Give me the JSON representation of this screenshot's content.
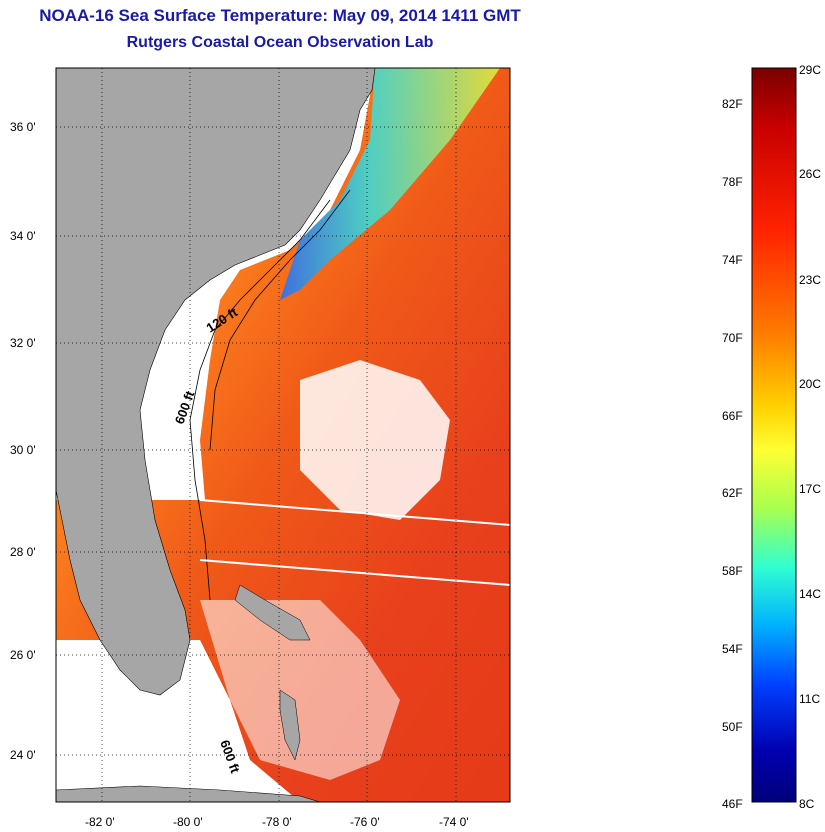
{
  "title": "NOAA-16 Sea Surface Temperature:  May 09, 2014 1411 GMT",
  "subtitle": "Rutgers Coastal Ocean Observation Lab",
  "map": {
    "lat_labels": [
      "36 0'",
      "34 0'",
      "32 0'",
      "30 0'",
      "28 0'",
      "26 0'",
      "24 0'"
    ],
    "lon_labels": [
      "-82 0'",
      "-80 0'",
      "-78 0'",
      "-76 0'",
      "-74 0'"
    ],
    "isobaths": [
      "120 ft",
      "600 ft",
      "600 ft"
    ],
    "colors": {
      "land": "#a6a6a6",
      "no_data": "#ffffff",
      "warm": "#e8401c",
      "hot": "#d81e10"
    }
  },
  "colorbar": {
    "fahrenheit": [
      "82F",
      "78F",
      "74F",
      "70F",
      "66F",
      "62F",
      "58F",
      "54F",
      "50F",
      "46F"
    ],
    "celsius": [
      "29C",
      "26C",
      "23C",
      "20C",
      "17C",
      "14C",
      "11C",
      "8C"
    ],
    "stops": [
      "#7a0000",
      "#c80000",
      "#ff2200",
      "#ff7a00",
      "#ffd000",
      "#ffff33",
      "#a8ff50",
      "#30ffd0",
      "#00b0ff",
      "#0040ff",
      "#0000b0",
      "#00007a"
    ]
  }
}
